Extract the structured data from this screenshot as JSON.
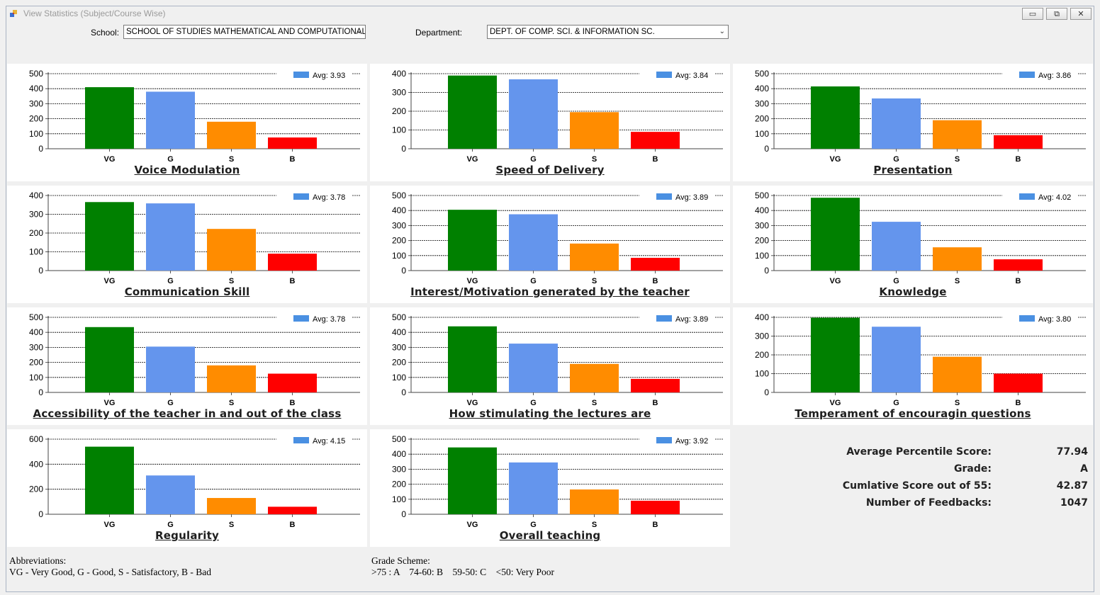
{
  "window": {
    "title": "View Statistics (Subject/Course Wise)",
    "minimize_label": "▭",
    "restore_label": "⧉",
    "close_label": "✕"
  },
  "filters": {
    "school_label": "School:",
    "school_value": "SCHOOL OF STUDIES MATHEMATICAL AND COMPUTATIONAL",
    "department_label": "Department:",
    "department_value": "DEPT. OF COMP. SCI. & INFORMATION SC."
  },
  "colors": {
    "VG": "#008000",
    "G": "#6495ED",
    "S": "#FF8C00",
    "B": "#FF0000",
    "legend": "#4a90e2"
  },
  "chart_data": [
    {
      "type": "bar",
      "title": "Voice Modulation",
      "categories": [
        "VG",
        "G",
        "S",
        "B"
      ],
      "values": [
        410,
        380,
        180,
        75
      ],
      "ylim": [
        0,
        500
      ],
      "yticks": [
        0,
        100,
        200,
        300,
        400,
        500
      ],
      "legend": "Avg: 3.93"
    },
    {
      "type": "bar",
      "title": "Speed of Delivery",
      "categories": [
        "VG",
        "G",
        "S",
        "B"
      ],
      "values": [
        390,
        370,
        195,
        90
      ],
      "ylim": [
        0,
        400
      ],
      "yticks": [
        0,
        100,
        200,
        300,
        400
      ],
      "legend": "Avg: 3.84"
    },
    {
      "type": "bar",
      "title": "Presentation",
      "categories": [
        "VG",
        "G",
        "S",
        "B"
      ],
      "values": [
        415,
        335,
        190,
        90
      ],
      "ylim": [
        0,
        500
      ],
      "yticks": [
        0,
        100,
        200,
        300,
        400,
        500
      ],
      "legend": "Avg: 3.86"
    },
    {
      "type": "bar",
      "title": "Communication Skill",
      "categories": [
        "VG",
        "G",
        "S",
        "B"
      ],
      "values": [
        365,
        358,
        222,
        90
      ],
      "ylim": [
        0,
        400
      ],
      "yticks": [
        0,
        100,
        200,
        300,
        400
      ],
      "legend": "Avg: 3.78"
    },
    {
      "type": "bar",
      "title": "Interest/Motivation generated by the teacher",
      "categories": [
        "VG",
        "G",
        "S",
        "B"
      ],
      "values": [
        405,
        375,
        180,
        85
      ],
      "ylim": [
        0,
        500
      ],
      "yticks": [
        0,
        100,
        200,
        300,
        400,
        500
      ],
      "legend": "Avg: 3.89"
    },
    {
      "type": "bar",
      "title": "Knowledge",
      "categories": [
        "VG",
        "G",
        "S",
        "B"
      ],
      "values": [
        485,
        325,
        155,
        75
      ],
      "ylim": [
        0,
        500
      ],
      "yticks": [
        0,
        100,
        200,
        300,
        400,
        500
      ],
      "legend": "Avg: 4.02"
    },
    {
      "type": "bar",
      "title": "Accessibility of the teacher in and out of the class",
      "categories": [
        "VG",
        "G",
        "S",
        "B"
      ],
      "values": [
        435,
        305,
        180,
        125
      ],
      "ylim": [
        0,
        500
      ],
      "yticks": [
        0,
        100,
        200,
        300,
        400,
        500
      ],
      "legend": "Avg: 3.78"
    },
    {
      "type": "bar",
      "title": "How stimulating the lectures are",
      "categories": [
        "VG",
        "G",
        "S",
        "B"
      ],
      "values": [
        440,
        325,
        190,
        90
      ],
      "ylim": [
        0,
        500
      ],
      "yticks": [
        0,
        100,
        200,
        300,
        400,
        500
      ],
      "legend": "Avg: 3.89"
    },
    {
      "type": "bar",
      "title": "Temperament of encouragin questions",
      "categories": [
        "VG",
        "G",
        "S",
        "B"
      ],
      "values": [
        398,
        350,
        190,
        100
      ],
      "ylim": [
        0,
        400
      ],
      "yticks": [
        0,
        100,
        200,
        300,
        400
      ],
      "legend": "Avg: 3.80"
    },
    {
      "type": "bar",
      "title": "Regularity",
      "categories": [
        "VG",
        "G",
        "S",
        "B"
      ],
      "values": [
        540,
        310,
        130,
        60
      ],
      "ylim": [
        0,
        600
      ],
      "yticks": [
        0,
        200,
        400,
        600
      ],
      "legend": "Avg: 4.15"
    },
    {
      "type": "bar",
      "title": "Overall teaching",
      "categories": [
        "VG",
        "G",
        "S",
        "B"
      ],
      "values": [
        445,
        345,
        165,
        90
      ],
      "ylim": [
        0,
        500
      ],
      "yticks": [
        0,
        100,
        200,
        300,
        400,
        500
      ],
      "legend": "Avg: 3.92"
    }
  ],
  "summary": {
    "avg_percentile_label": "Average Percentile Score:",
    "avg_percentile_value": "77.94",
    "grade_label": "Grade:",
    "grade_value": "A",
    "cumulative_label": "Cumlative Score out of 55:",
    "cumulative_value": "42.87",
    "feedbacks_label": "Number of Feedbacks:",
    "feedbacks_value": "1047"
  },
  "footer": {
    "abbrev_title": "Abbreviations:",
    "abbrev_text": "VG - Very Good, G - Good, S - Satisfactory, B - Bad",
    "grade_title": "Grade Scheme:",
    "grade_text": ">75 : A    74-60: B    59-50: C    <50: Very Poor"
  }
}
